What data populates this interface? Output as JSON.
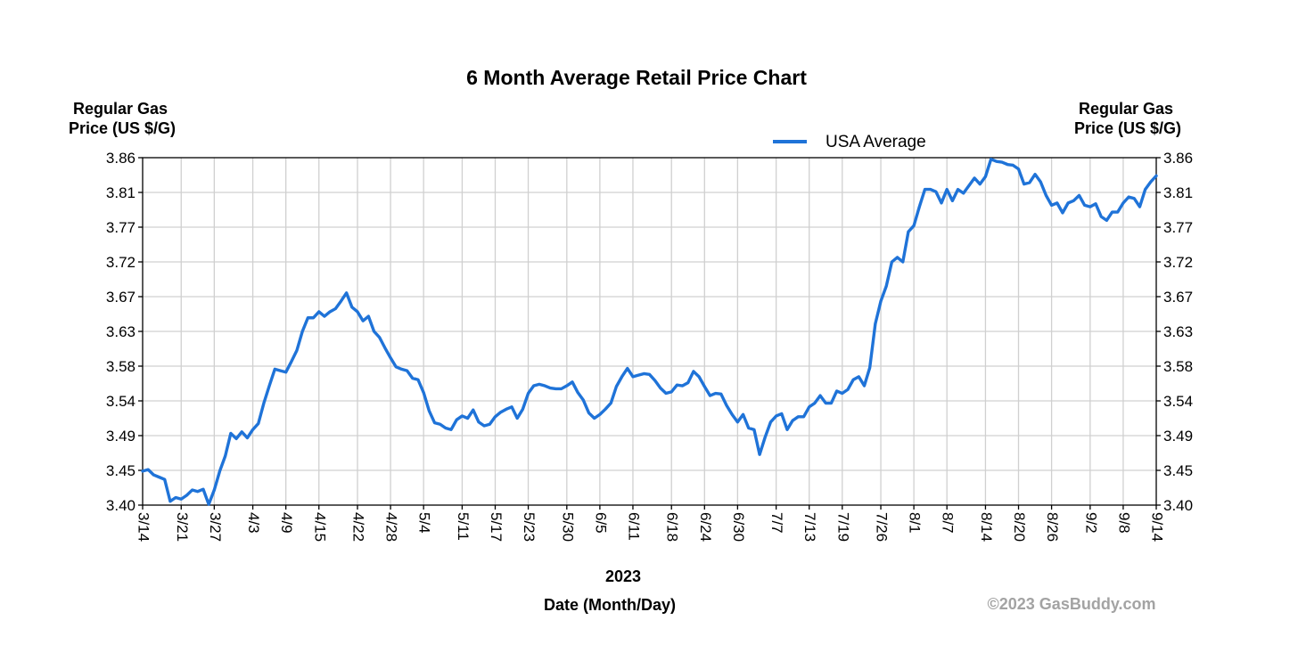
{
  "chart_data": {
    "type": "line",
    "title": "6 Month Average Retail Price Chart",
    "ylabel_left": [
      "Regular Gas",
      "Price (US $/G)"
    ],
    "ylabel_right": [
      "Regular Gas",
      "Price (US $/G)"
    ],
    "xlabel_year": "2023",
    "xlabel": "Date (Month/Day)",
    "credit": "©2023 GasBuddy.com",
    "ylim": [
      3.4,
      3.86
    ],
    "y_ticks": [
      "3.40",
      "3.45",
      "3.49",
      "3.54",
      "3.58",
      "3.63",
      "3.67",
      "3.72",
      "3.77",
      "3.81",
      "3.86"
    ],
    "x_range_days": [
      0,
      184
    ],
    "x_ticks": [
      {
        "label": "3/14",
        "day": 0
      },
      {
        "label": "3/21",
        "day": 7
      },
      {
        "label": "3/27",
        "day": 13
      },
      {
        "label": "4/3",
        "day": 20
      },
      {
        "label": "4/9",
        "day": 26
      },
      {
        "label": "4/15",
        "day": 32
      },
      {
        "label": "4/22",
        "day": 39
      },
      {
        "label": "4/28",
        "day": 45
      },
      {
        "label": "5/4",
        "day": 51
      },
      {
        "label": "5/11",
        "day": 58
      },
      {
        "label": "5/17",
        "day": 64
      },
      {
        "label": "5/23",
        "day": 70
      },
      {
        "label": "5/30",
        "day": 77
      },
      {
        "label": "6/5",
        "day": 83
      },
      {
        "label": "6/11",
        "day": 89
      },
      {
        "label": "6/18",
        "day": 96
      },
      {
        "label": "6/24",
        "day": 102
      },
      {
        "label": "6/30",
        "day": 108
      },
      {
        "label": "7/7",
        "day": 115
      },
      {
        "label": "7/13",
        "day": 121
      },
      {
        "label": "7/19",
        "day": 127
      },
      {
        "label": "7/26",
        "day": 134
      },
      {
        "label": "8/1",
        "day": 140
      },
      {
        "label": "8/7",
        "day": 146
      },
      {
        "label": "8/14",
        "day": 153
      },
      {
        "label": "8/20",
        "day": 159
      },
      {
        "label": "8/26",
        "day": 165
      },
      {
        "label": "9/2",
        "day": 172
      },
      {
        "label": "9/8",
        "day": 178
      },
      {
        "label": "9/14",
        "day": 184
      }
    ],
    "legend": "top-right",
    "grid": true,
    "series": [
      {
        "name": "USA Average",
        "color": "#1f73d8",
        "points": [
          [
            0,
            3.445
          ],
          [
            1,
            3.447
          ],
          [
            2,
            3.44
          ],
          [
            3,
            3.437
          ],
          [
            4,
            3.434
          ],
          [
            5,
            3.405
          ],
          [
            6,
            3.41
          ],
          [
            7,
            3.408
          ],
          [
            8,
            3.413
          ],
          [
            9,
            3.42
          ],
          [
            10,
            3.418
          ],
          [
            11,
            3.421
          ],
          [
            12,
            3.401
          ],
          [
            13,
            3.42
          ],
          [
            14,
            3.445
          ],
          [
            15,
            3.465
          ],
          [
            16,
            3.495
          ],
          [
            17,
            3.488
          ],
          [
            18,
            3.497
          ],
          [
            19,
            3.489
          ],
          [
            20,
            3.5
          ],
          [
            21,
            3.508
          ],
          [
            22,
            3.535
          ],
          [
            23,
            3.558
          ],
          [
            24,
            3.58
          ],
          [
            25,
            3.578
          ],
          [
            26,
            3.576
          ],
          [
            27,
            3.59
          ],
          [
            28,
            3.605
          ],
          [
            29,
            3.63
          ],
          [
            30,
            3.648
          ],
          [
            31,
            3.648
          ],
          [
            32,
            3.656
          ],
          [
            33,
            3.65
          ],
          [
            34,
            3.656
          ],
          [
            35,
            3.66
          ],
          [
            36,
            3.67
          ],
          [
            37,
            3.681
          ],
          [
            38,
            3.662
          ],
          [
            39,
            3.656
          ],
          [
            40,
            3.644
          ],
          [
            41,
            3.65
          ],
          [
            42,
            3.63
          ],
          [
            43,
            3.622
          ],
          [
            44,
            3.608
          ],
          [
            45,
            3.595
          ],
          [
            46,
            3.583
          ],
          [
            47,
            3.58
          ],
          [
            48,
            3.578
          ],
          [
            49,
            3.568
          ],
          [
            50,
            3.566
          ],
          [
            51,
            3.549
          ],
          [
            52,
            3.525
          ],
          [
            53,
            3.509
          ],
          [
            54,
            3.507
          ],
          [
            55,
            3.502
          ],
          [
            56,
            3.5
          ],
          [
            57,
            3.513
          ],
          [
            58,
            3.518
          ],
          [
            59,
            3.515
          ],
          [
            60,
            3.526
          ],
          [
            61,
            3.51
          ],
          [
            62,
            3.505
          ],
          [
            63,
            3.507
          ],
          [
            64,
            3.517
          ],
          [
            65,
            3.523
          ],
          [
            66,
            3.527
          ],
          [
            67,
            3.53
          ],
          [
            68,
            3.515
          ],
          [
            69,
            3.527
          ],
          [
            70,
            3.548
          ],
          [
            71,
            3.558
          ],
          [
            72,
            3.56
          ],
          [
            73,
            3.558
          ],
          [
            74,
            3.555
          ],
          [
            75,
            3.554
          ],
          [
            76,
            3.554
          ],
          [
            77,
            3.558
          ],
          [
            78,
            3.563
          ],
          [
            79,
            3.549
          ],
          [
            80,
            3.539
          ],
          [
            81,
            3.522
          ],
          [
            82,
            3.515
          ],
          [
            83,
            3.52
          ],
          [
            84,
            3.527
          ],
          [
            85,
            3.535
          ],
          [
            86,
            3.557
          ],
          [
            87,
            3.57
          ],
          [
            88,
            3.581
          ],
          [
            89,
            3.57
          ],
          [
            90,
            3.572
          ],
          [
            91,
            3.574
          ],
          [
            92,
            3.573
          ],
          [
            93,
            3.565
          ],
          [
            94,
            3.555
          ],
          [
            95,
            3.548
          ],
          [
            96,
            3.55
          ],
          [
            97,
            3.559
          ],
          [
            98,
            3.558
          ],
          [
            99,
            3.562
          ],
          [
            100,
            3.577
          ],
          [
            101,
            3.57
          ],
          [
            102,
            3.557
          ],
          [
            103,
            3.545
          ],
          [
            104,
            3.548
          ],
          [
            105,
            3.547
          ],
          [
            106,
            3.532
          ],
          [
            107,
            3.52
          ],
          [
            108,
            3.51
          ],
          [
            109,
            3.52
          ],
          [
            110,
            3.502
          ],
          [
            111,
            3.5
          ],
          [
            112,
            3.467
          ],
          [
            113,
            3.49
          ],
          [
            114,
            3.51
          ],
          [
            115,
            3.518
          ],
          [
            116,
            3.521
          ],
          [
            117,
            3.5
          ],
          [
            118,
            3.512
          ],
          [
            119,
            3.517
          ],
          [
            120,
            3.517
          ],
          [
            121,
            3.53
          ],
          [
            122,
            3.535
          ],
          [
            123,
            3.545
          ],
          [
            124,
            3.535
          ],
          [
            125,
            3.535
          ],
          [
            126,
            3.551
          ],
          [
            127,
            3.548
          ],
          [
            128,
            3.553
          ],
          [
            129,
            3.566
          ],
          [
            130,
            3.57
          ],
          [
            131,
            3.558
          ],
          [
            132,
            3.582
          ],
          [
            133,
            3.64
          ],
          [
            134,
            3.67
          ],
          [
            135,
            3.69
          ],
          [
            136,
            3.722
          ],
          [
            137,
            3.728
          ],
          [
            138,
            3.722
          ],
          [
            139,
            3.762
          ],
          [
            140,
            3.77
          ],
          [
            141,
            3.795
          ],
          [
            142,
            3.818
          ],
          [
            143,
            3.818
          ],
          [
            144,
            3.815
          ],
          [
            145,
            3.8
          ],
          [
            146,
            3.818
          ],
          [
            147,
            3.803
          ],
          [
            148,
            3.818
          ],
          [
            149,
            3.813
          ],
          [
            150,
            3.823
          ],
          [
            151,
            3.833
          ],
          [
            152,
            3.825
          ],
          [
            153,
            3.835
          ],
          [
            154,
            3.858
          ],
          [
            155,
            3.855
          ],
          [
            156,
            3.854
          ],
          [
            157,
            3.851
          ],
          [
            158,
            3.85
          ],
          [
            159,
            3.845
          ],
          [
            160,
            3.825
          ],
          [
            161,
            3.827
          ],
          [
            162,
            3.838
          ],
          [
            163,
            3.828
          ],
          [
            164,
            3.81
          ],
          [
            165,
            3.797
          ],
          [
            166,
            3.8
          ],
          [
            167,
            3.787
          ],
          [
            168,
            3.8
          ],
          [
            169,
            3.803
          ],
          [
            170,
            3.81
          ],
          [
            171,
            3.797
          ],
          [
            172,
            3.795
          ],
          [
            173,
            3.799
          ],
          [
            174,
            3.782
          ],
          [
            175,
            3.777
          ],
          [
            176,
            3.788
          ],
          [
            177,
            3.788
          ],
          [
            178,
            3.8
          ],
          [
            179,
            3.808
          ],
          [
            180,
            3.806
          ],
          [
            181,
            3.795
          ],
          [
            182,
            3.818
          ],
          [
            183,
            3.828
          ],
          [
            184,
            3.836
          ]
        ]
      }
    ]
  }
}
